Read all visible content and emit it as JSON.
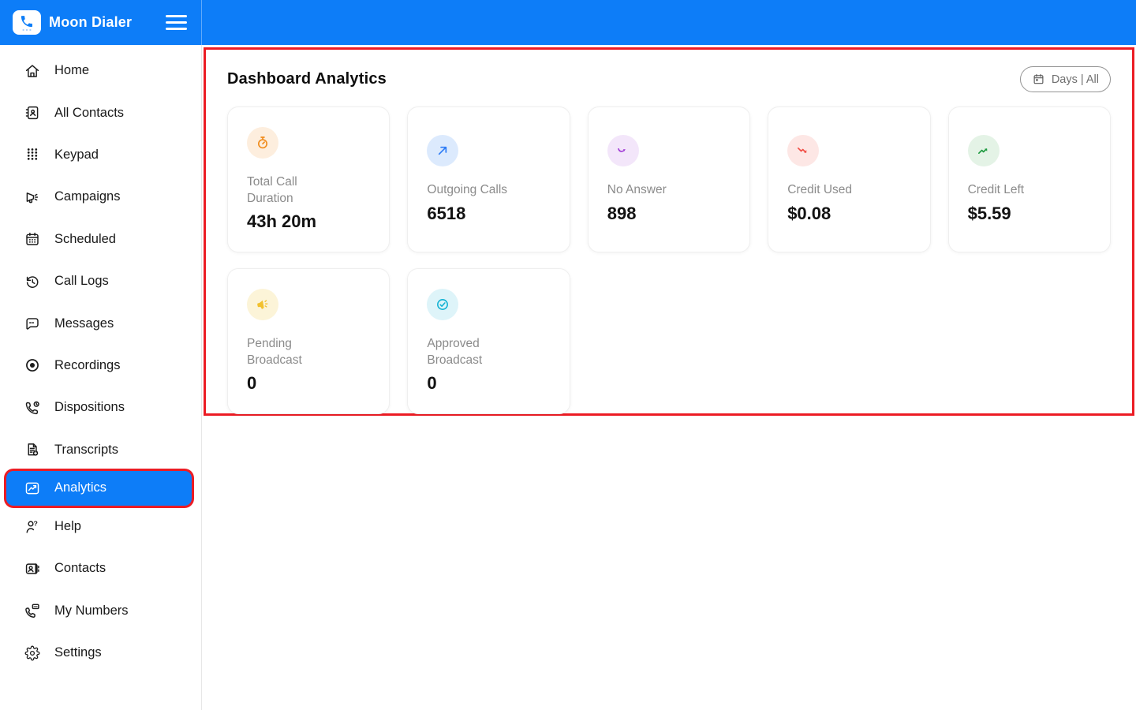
{
  "app": {
    "name": "Moon Dialer",
    "colors": {
      "primary": "#0d7df8",
      "highlight": "#ec1c24"
    }
  },
  "header": {
    "logo_icon": "phone-icon",
    "menu_icon": "hamburger-icon"
  },
  "sidebar": {
    "items": [
      {
        "label": "Home",
        "icon": "home-icon",
        "active": false
      },
      {
        "label": "All Contacts",
        "icon": "contact-book-icon",
        "active": false
      },
      {
        "label": "Keypad",
        "icon": "keypad-icon",
        "active": false
      },
      {
        "label": "Campaigns",
        "icon": "megaphone-icon",
        "active": false
      },
      {
        "label": "Scheduled",
        "icon": "calendar-icon",
        "active": false
      },
      {
        "label": "Call Logs",
        "icon": "history-icon",
        "active": false
      },
      {
        "label": "Messages",
        "icon": "chat-bubble-icon",
        "active": false
      },
      {
        "label": "Recordings",
        "icon": "record-icon",
        "active": false
      },
      {
        "label": "Dispositions",
        "icon": "phone-clock-icon",
        "active": false
      },
      {
        "label": "Transcripts",
        "icon": "document-add-icon",
        "active": false
      },
      {
        "label": "Analytics",
        "icon": "chart-icon",
        "active": true
      },
      {
        "label": "Help",
        "icon": "person-question-icon",
        "active": false
      },
      {
        "label": "Contacts",
        "icon": "contact-card-icon",
        "active": false
      },
      {
        "label": "My Numbers",
        "icon": "phone-message-icon",
        "active": false
      },
      {
        "label": "Settings",
        "icon": "gear-icon",
        "active": false
      }
    ]
  },
  "main": {
    "title": "Dashboard Analytics",
    "filter": {
      "label": "Days | All",
      "icon": "calendar-small-icon"
    },
    "cards": [
      {
        "label": "Total Call Duration",
        "value": "43h 20m",
        "icon": "stopwatch-icon",
        "color": "#f08c1d",
        "bg": "#fdeede"
      },
      {
        "label": "Outgoing Calls",
        "value": "6518",
        "icon": "arrow-up-right-icon",
        "color": "#2e7cf6",
        "bg": "#dceafd"
      },
      {
        "label": "No Answer",
        "value": "898",
        "icon": "arrow-swoosh-icon",
        "color": "#a13bd6",
        "bg": "#f3e6fa"
      },
      {
        "label": "Credit Used",
        "value": "$0.08",
        "icon": "trend-down-icon",
        "color": "#f14d44",
        "bg": "#fde7e5"
      },
      {
        "label": "Credit Left",
        "value": "$5.59",
        "icon": "trend-up-icon",
        "color": "#1d9a3f",
        "bg": "#e4f3e6"
      },
      {
        "label": "Pending Broadcast",
        "value": "0",
        "icon": "megaphone-filled-icon",
        "color": "#f2c12e",
        "bg": "#fcf4d8"
      },
      {
        "label": "Approved Broadcast",
        "value": "0",
        "icon": "check-circle-icon",
        "color": "#12b2d3",
        "bg": "#def4f9"
      }
    ]
  }
}
